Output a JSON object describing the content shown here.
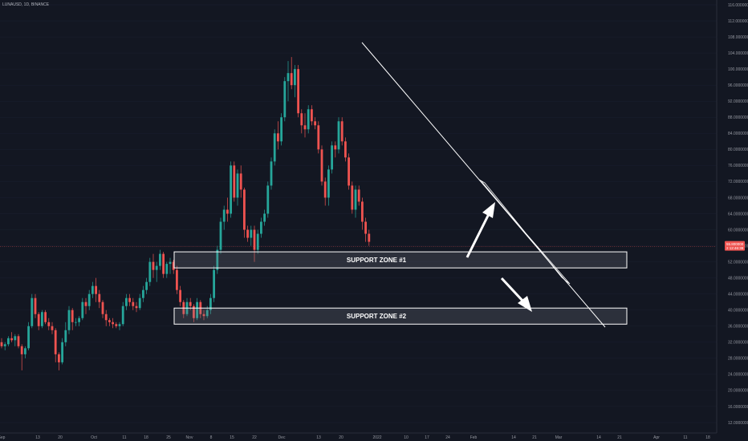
{
  "header": {
    "symbol": "LUNAUSD, 1D, BINANCE"
  },
  "colors": {
    "background": "#131722",
    "up": "#26a69a",
    "down": "#ef5350",
    "axis_text": "#9598a1",
    "annotation": "#ffffff",
    "price_line": "#ef5350"
  },
  "chart_data": {
    "type": "candlestick",
    "y_ticks": [
      "116.0000000",
      "112.0000000",
      "108.0000000",
      "104.0000000",
      "100.0000000",
      "96.0000000",
      "92.0000000",
      "88.0000000",
      "84.0000000",
      "80.0000000",
      "76.0000000",
      "72.0000000",
      "68.0000000",
      "64.0000000",
      "60.0000000",
      "56.0000000",
      "52.0000000",
      "48.0000000",
      "44.0000000",
      "40.0000000",
      "36.0000000",
      "32.0000000",
      "28.0000000",
      "24.0000000",
      "20.0000000",
      "16.0000000",
      "12.0000000"
    ],
    "ylim": [
      10,
      118
    ],
    "x_labels": [
      "Sep",
      "13",
      "20",
      "Oct",
      "11",
      "18",
      "25",
      "Nov",
      "8",
      "15",
      "22",
      "Dec",
      "13",
      "20",
      "2022",
      "10",
      "17",
      "24",
      "Feb",
      "14",
      "21",
      "Mar",
      "14",
      "21",
      "Apr",
      "11",
      "18"
    ],
    "last_price": "55.800000",
    "last_price_sub": "2 12:46:38",
    "last_price_value": 55.8,
    "support_zones": [
      {
        "label": "SUPPORT ZONE #1",
        "low": 50.5,
        "high": 54.5
      },
      {
        "label": "SUPPORT ZONE #2",
        "low": 36.5,
        "high": 40.5
      }
    ],
    "trendline": {
      "from": {
        "date": "2021-12-24",
        "price": 106
      },
      "to": {
        "date": "2022-04-11",
        "price": 36
      }
    },
    "candles": [
      [
        32,
        33,
        30.5,
        31
      ],
      [
        31,
        32,
        30,
        31.5
      ],
      [
        31.5,
        33.5,
        31,
        33
      ],
      [
        33,
        34.5,
        32,
        32.5
      ],
      [
        32.5,
        34,
        31,
        33.5
      ],
      [
        33.5,
        34,
        30.5,
        31
      ],
      [
        31,
        31.5,
        25,
        29
      ],
      [
        29,
        31,
        28,
        30.5
      ],
      [
        30.5,
        37,
        30,
        36
      ],
      [
        36,
        44,
        35.5,
        43
      ],
      [
        43,
        44,
        38,
        39
      ],
      [
        39,
        39.5,
        35,
        36
      ],
      [
        36,
        40,
        35.5,
        39.5
      ],
      [
        39.5,
        40,
        36.5,
        37
      ],
      [
        37,
        38,
        35,
        36
      ],
      [
        36,
        37,
        34,
        35
      ],
      [
        35,
        35.5,
        27,
        29
      ],
      [
        29,
        29.5,
        25,
        27
      ],
      [
        27,
        33,
        26.5,
        32
      ],
      [
        32,
        37,
        31,
        35
      ],
      [
        35,
        41,
        34,
        40
      ],
      [
        40,
        40.5,
        35,
        37
      ],
      [
        37,
        38,
        36,
        37
      ],
      [
        37,
        38.5,
        36,
        38
      ],
      [
        38,
        43,
        37.5,
        42
      ],
      [
        42,
        43,
        39,
        41
      ],
      [
        41,
        45,
        40,
        44
      ],
      [
        44,
        47,
        43,
        46
      ],
      [
        46,
        48,
        42,
        44
      ],
      [
        44,
        45,
        40.5,
        42
      ],
      [
        42,
        42.5,
        38,
        39
      ],
      [
        39,
        40,
        36,
        37.5
      ],
      [
        37.5,
        38,
        36,
        37
      ],
      [
        37,
        38,
        35.5,
        36.5
      ],
      [
        36.5,
        37,
        35.5,
        36
      ],
      [
        36,
        37,
        35,
        36.5
      ],
      [
        36.5,
        42,
        36,
        41
      ],
      [
        41,
        44,
        40,
        43
      ],
      [
        43,
        44,
        41,
        42
      ],
      [
        42,
        43,
        40,
        41
      ],
      [
        41,
        42,
        39.5,
        40.5
      ],
      [
        40.5,
        44,
        40,
        43
      ],
      [
        43,
        46,
        42,
        45
      ],
      [
        45,
        48,
        44,
        47
      ],
      [
        47,
        53,
        46,
        52
      ],
      [
        52,
        54,
        48,
        50
      ],
      [
        50,
        52,
        47,
        51
      ],
      [
        51,
        55,
        50,
        54
      ],
      [
        54,
        54.5,
        48,
        49
      ],
      [
        49,
        52,
        48,
        51.5
      ],
      [
        51.5,
        53,
        49,
        52
      ],
      [
        52,
        52.5,
        49,
        50
      ],
      [
        50,
        51,
        44,
        45
      ],
      [
        45,
        46,
        41,
        42
      ],
      [
        42,
        42.5,
        38,
        39
      ],
      [
        39,
        43,
        38.5,
        42
      ],
      [
        42,
        43,
        40,
        41
      ],
      [
        41,
        41.5,
        37,
        38
      ],
      [
        38,
        43,
        37.5,
        42
      ],
      [
        42,
        42.5,
        38,
        39
      ],
      [
        39,
        40,
        37.5,
        38.5
      ],
      [
        38.5,
        41,
        38,
        40
      ],
      [
        40,
        44,
        39,
        43
      ],
      [
        43,
        51,
        42,
        50
      ],
      [
        50,
        56,
        49,
        55
      ],
      [
        55,
        63,
        54,
        62
      ],
      [
        62,
        66,
        60,
        65
      ],
      [
        65,
        68,
        62,
        64
      ],
      [
        64,
        77,
        63,
        76
      ],
      [
        76,
        77,
        67,
        68
      ],
      [
        68,
        75,
        66,
        74
      ],
      [
        74,
        76,
        68,
        70
      ],
      [
        70,
        70.5,
        58,
        60
      ],
      [
        60,
        61,
        57,
        58
      ],
      [
        58,
        61,
        56,
        60
      ],
      [
        60,
        61,
        52,
        55
      ],
      [
        55,
        60,
        54,
        59
      ],
      [
        59,
        63,
        58,
        62
      ],
      [
        62,
        65,
        61,
        64
      ],
      [
        64,
        72,
        63,
        71
      ],
      [
        71,
        78,
        70,
        77
      ],
      [
        77,
        85,
        76,
        84
      ],
      [
        84,
        87,
        80,
        82
      ],
      [
        82,
        89,
        81,
        88
      ],
      [
        88,
        98,
        87,
        97
      ],
      [
        97,
        102,
        92,
        99
      ],
      [
        99,
        103,
        95,
        96
      ],
      [
        96,
        101,
        93,
        100
      ],
      [
        100,
        101,
        88,
        89
      ],
      [
        89,
        90,
        84,
        86
      ],
      [
        86,
        89,
        83,
        85
      ],
      [
        85,
        91,
        84,
        90
      ],
      [
        90,
        91,
        86,
        87
      ],
      [
        87,
        88,
        85,
        86
      ],
      [
        86,
        87,
        79,
        80
      ],
      [
        80,
        81,
        71,
        72
      ],
      [
        72,
        73,
        66,
        68
      ],
      [
        68,
        76,
        66,
        75
      ],
      [
        75,
        82,
        74,
        81
      ],
      [
        81,
        82,
        78,
        80
      ],
      [
        80,
        88,
        79,
        87
      ],
      [
        87,
        88,
        81,
        82
      ],
      [
        82,
        83,
        77,
        78
      ],
      [
        78,
        79,
        70,
        71
      ],
      [
        71,
        72,
        64,
        65
      ],
      [
        65,
        71,
        63,
        70
      ],
      [
        70,
        71,
        66,
        67
      ],
      [
        67,
        68,
        60,
        62
      ],
      [
        62,
        63,
        57,
        59
      ],
      [
        59,
        60,
        56,
        57
      ]
    ]
  }
}
